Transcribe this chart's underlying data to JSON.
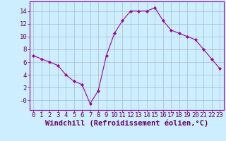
{
  "x": [
    0,
    1,
    2,
    3,
    4,
    5,
    6,
    7,
    8,
    9,
    10,
    11,
    12,
    13,
    14,
    15,
    16,
    17,
    18,
    19,
    20,
    21,
    22,
    23
  ],
  "y": [
    7.0,
    6.5,
    6.0,
    5.5,
    4.0,
    3.0,
    2.5,
    -0.5,
    1.5,
    7.0,
    10.5,
    12.5,
    14.0,
    14.0,
    14.0,
    14.5,
    12.5,
    11.0,
    10.5,
    10.0,
    9.5,
    8.0,
    6.5,
    5.0
  ],
  "line_color": "#990099",
  "marker": "D",
  "marker_size": 2.0,
  "background_color": "#cceeff",
  "grid_color": "#aabbcc",
  "xlabel": "Windchill (Refroidissement éolien,°C)",
  "xlabel_color": "#660066",
  "xlabel_fontsize": 7.5,
  "tick_color": "#660066",
  "tick_fontsize": 6.5,
  "ylim": [
    -1.5,
    15.5
  ],
  "xlim": [
    -0.5,
    23.5
  ],
  "yticks": [
    0,
    2,
    4,
    6,
    8,
    10,
    12,
    14
  ],
  "ytick_labels": [
    "-0",
    "2",
    "4",
    "6",
    "8",
    "10",
    "12",
    "14"
  ],
  "xtick_labels": [
    "0",
    "1",
    "2",
    "3",
    "4",
    "5",
    "6",
    "7",
    "8",
    "9",
    "10",
    "11",
    "12",
    "13",
    "14",
    "15",
    "16",
    "17",
    "18",
    "19",
    "20",
    "21",
    "22",
    "23"
  ]
}
